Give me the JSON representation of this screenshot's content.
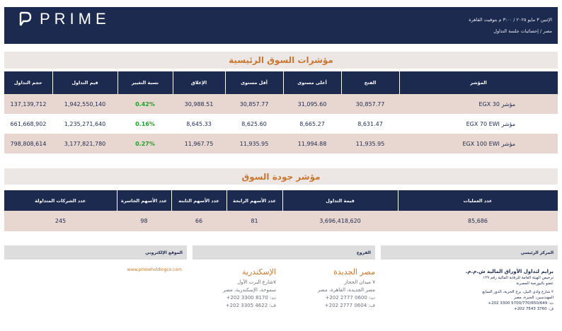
{
  "header": {
    "brand": "PRIME",
    "date_line": "الإثنين ٣ مايو ٢٠٢٥ / ٣:٠٠ م بتوقيت القاهرة",
    "sub_line": "مصر / إحصائيات جلسة التداول"
  },
  "main_indices": {
    "title": "مؤشرات السوق الرئيسية",
    "columns": [
      "المؤشر",
      "الفتح",
      "أعلى مستوى",
      "أقل مستوى",
      "الإغلاق",
      "نسبة التغيير",
      "قيم التداول",
      "حجم التداول"
    ],
    "rows": [
      {
        "name": "مؤشر EGX 30",
        "open": "30,857.77",
        "high": "31,095.60",
        "low": "30,857.77",
        "close": "30,988.51",
        "change": "0.42%",
        "value": "1,942,550,140",
        "volume": "137,139,712"
      },
      {
        "name": "مؤشر EGX 70 EWI",
        "open": "8,631.47",
        "high": "8,665.27",
        "low": "8,625.60",
        "close": "8,645.33",
        "change": "0.16%",
        "value": "1,235,271,640",
        "volume": "661,668,902"
      },
      {
        "name": "مؤشر EGX 100 EWI",
        "open": "11,935.95",
        "high": "11,994.88",
        "low": "11,935.95",
        "close": "11,967.75",
        "change": "0.27%",
        "value": "3,177,821,780",
        "volume": "798,808,614"
      }
    ],
    "positive_color": "#1fa02a"
  },
  "quality": {
    "title": "مؤشر جودة السوق",
    "columns": [
      "عدد العمليات",
      "قيمة التداول",
      "عدد الأسهم الرابحة",
      "عدد الأسهم الثابته",
      "عدد الأسهم الخاسرة",
      "عدد الشركات المتداولة"
    ],
    "values": [
      "85,686",
      "3,696,418,620",
      "81",
      "66",
      "98",
      "245"
    ]
  },
  "footer": {
    "hq_label": "المركز الرئيسي",
    "branches_label": "الفروع",
    "website_label": "الموقع الإلكتروني",
    "hq_lines": [
      "برايم لتداول الأوراق المالية ش.م.م.",
      "ترخيص الهيئة العامة للرقابة المالية رقم ١٢٩",
      "عضو بالبورصة المصرية",
      "٢ شارع وادي النيل، برج الحرية، الدور السابع",
      "المهندسين، الجيزة، مصر",
      "ت: 5700/770/650/649 3300 202+",
      "ف: 3760 7543 202+"
    ],
    "branch1": {
      "city": "مصر الجديدة",
      "lines": [
        "٧ ميدان الحجاز",
        "مصر الجديدة، القاهرة، مصر",
        "ت: 0600 2777 202+",
        "ف: 0604 2777 202+"
      ]
    },
    "branch2": {
      "city": "الإسكندرية",
      "lines": [
        "٧شارع البرت الأول",
        "سموحة، الإسكندرية، مصر",
        "ت: 8170 3300 202+",
        "ف: 4622 3305 202+"
      ]
    },
    "website": "www.primeholdingco.com"
  }
}
